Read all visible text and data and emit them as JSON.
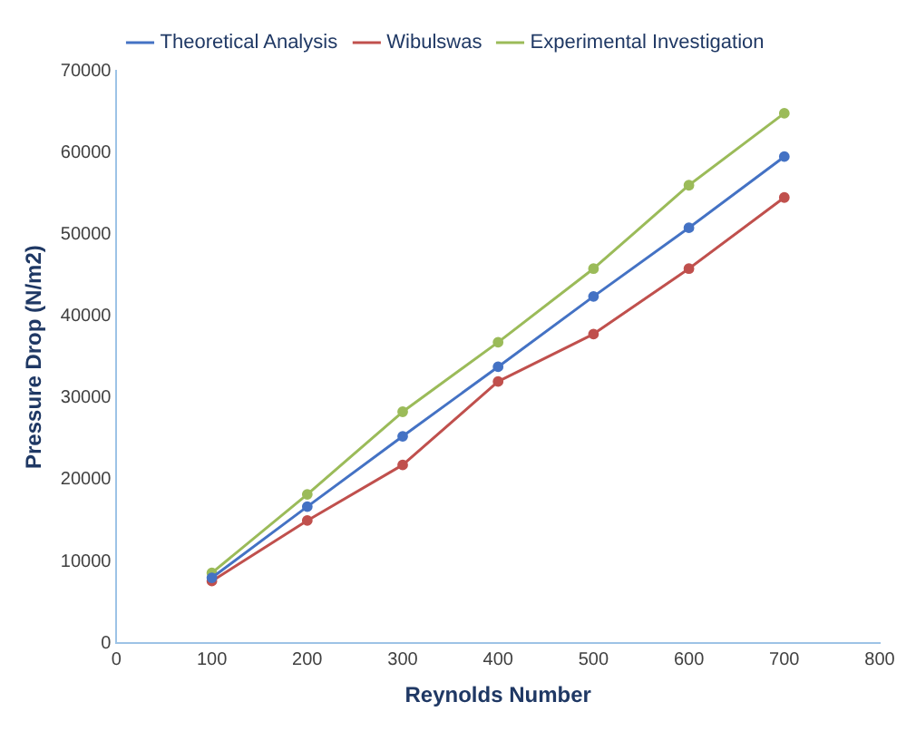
{
  "chart_data": {
    "type": "line",
    "xlabel": "Reynolds Number",
    "ylabel": "Pressure Drop (N/m2)",
    "x": [
      100,
      200,
      300,
      400,
      500,
      600,
      700
    ],
    "series": [
      {
        "name": "Theoretical Analysis",
        "color": "#4472c4",
        "values": [
          8000,
          16700,
          25300,
          33800,
          42400,
          50800,
          59500
        ]
      },
      {
        "name": "Wibulswas",
        "color": "#c0504d",
        "values": [
          7600,
          15000,
          21800,
          32000,
          37800,
          45800,
          54500
        ]
      },
      {
        "name": "Experimental Investigation",
        "color": "#9bbb59",
        "values": [
          8600,
          18200,
          28300,
          36800,
          45800,
          56000,
          64800
        ]
      }
    ],
    "xlim": [
      0,
      800
    ],
    "xticks": [
      0,
      100,
      200,
      300,
      400,
      500,
      600,
      700,
      800
    ],
    "ylim": [
      0,
      70000
    ],
    "yticks": [
      0,
      10000,
      20000,
      30000,
      40000,
      50000,
      60000,
      70000
    ],
    "grid": false,
    "legend": "top",
    "marker": "circle",
    "line_style": "solid"
  }
}
